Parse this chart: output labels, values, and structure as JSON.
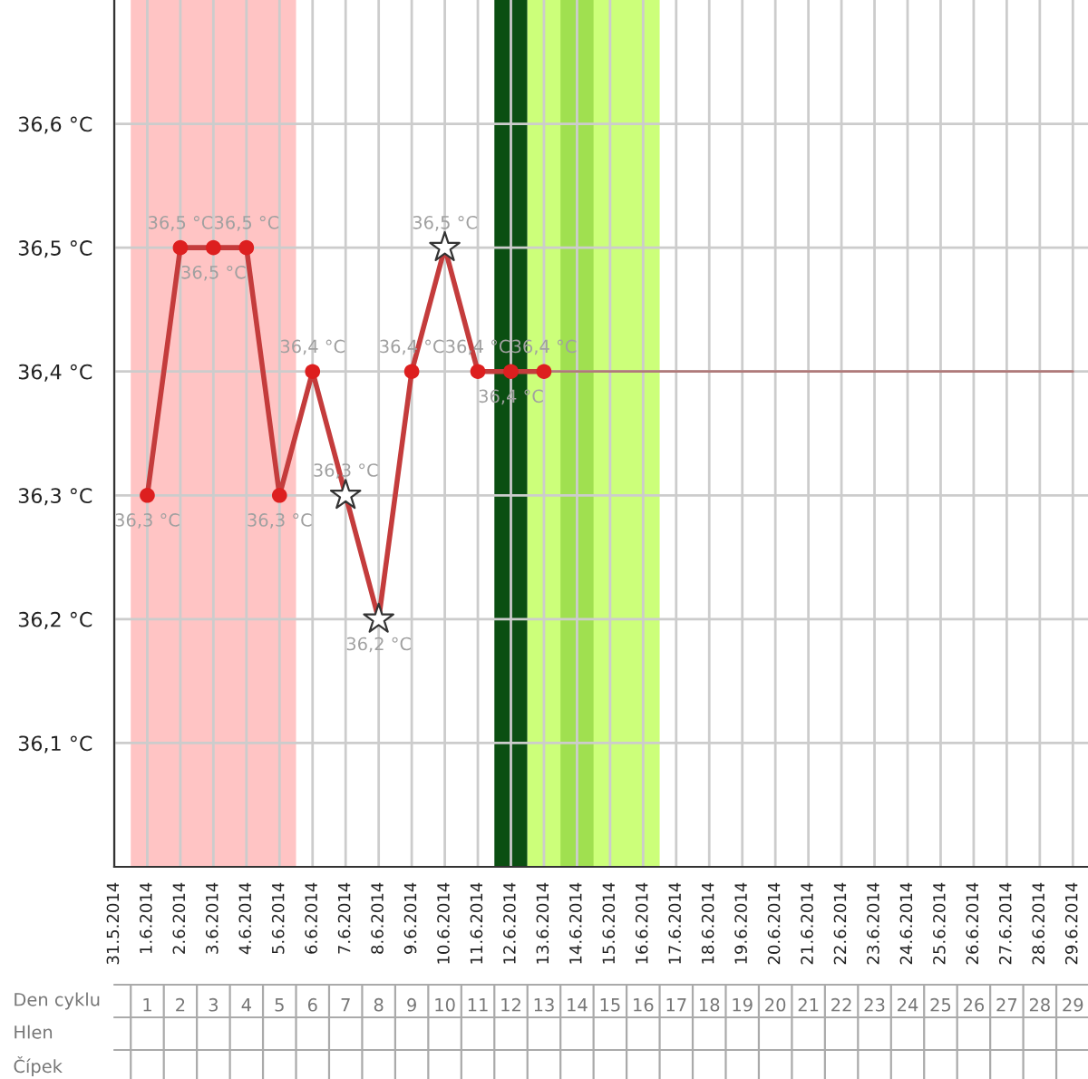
{
  "chart_data": {
    "type": "line",
    "xlim": [
      "2014-05-31",
      "2014-06-29T11:00"
    ],
    "xticks": [
      {
        "value": "2014-05-31",
        "label": "31.5.2014"
      },
      {
        "value": "2014-06-01",
        "label": "1.6.2014"
      },
      {
        "value": "2014-06-02",
        "label": "2.6.2014"
      },
      {
        "value": "2014-06-03",
        "label": "3.6.2014"
      },
      {
        "value": "2014-06-04",
        "label": "4.6.2014"
      },
      {
        "value": "2014-06-05",
        "label": "5.6.2014"
      },
      {
        "value": "2014-06-06",
        "label": "6.6.2014"
      },
      {
        "value": "2014-06-07",
        "label": "7.6.2014"
      },
      {
        "value": "2014-06-08",
        "label": "8.6.2014"
      },
      {
        "value": "2014-06-09",
        "label": "9.6.2014"
      },
      {
        "value": "2014-06-10",
        "label": "10.6.2014"
      },
      {
        "value": "2014-06-11",
        "label": "11.6.2014"
      },
      {
        "value": "2014-06-12",
        "label": "12.6.2014"
      },
      {
        "value": "2014-06-13",
        "label": "13.6.2014"
      },
      {
        "value": "2014-06-14",
        "label": "14.6.2014"
      },
      {
        "value": "2014-06-15",
        "label": "15.6.2014"
      },
      {
        "value": "2014-06-16",
        "label": "16.6.2014"
      },
      {
        "value": "2014-06-17",
        "label": "17.6.2014"
      },
      {
        "value": "2014-06-18",
        "label": "18.6.2014"
      },
      {
        "value": "2014-06-19",
        "label": "19.6.2014"
      },
      {
        "value": "2014-06-20",
        "label": "20.6.2014"
      },
      {
        "value": "2014-06-21",
        "label": "21.6.2014"
      },
      {
        "value": "2014-06-22",
        "label": "22.6.2014"
      },
      {
        "value": "2014-06-23",
        "label": "23.6.2014"
      },
      {
        "value": "2014-06-24",
        "label": "24.6.2014"
      },
      {
        "value": "2014-06-25",
        "label": "25.6.2014"
      },
      {
        "value": "2014-06-26",
        "label": "26.6.2014"
      },
      {
        "value": "2014-06-27",
        "label": "27.6.2014"
      },
      {
        "value": "2014-06-28",
        "label": "28.6.2014"
      },
      {
        "value": "2014-06-29",
        "label": "29.6.2014"
      }
    ],
    "ylim": [
      36.0,
      36.7
    ],
    "yticks": [
      {
        "value": 36.1,
        "label": "36,1 °C"
      },
      {
        "value": 36.2,
        "label": "36,2 °C"
      },
      {
        "value": 36.3,
        "label": "36,3 °C"
      },
      {
        "value": 36.4,
        "label": "36,4 °C"
      },
      {
        "value": 36.5,
        "label": "36,5 °C"
      },
      {
        "value": 36.6,
        "label": "36,6 °C"
      }
    ],
    "x2lim": [
      "2014-05-31",
      "2014-06-29T11:00"
    ],
    "x2label": "Den cyklu",
    "x2ticks": [
      {
        "value": "2014-06-01",
        "label": "1"
      },
      {
        "value": "2014-06-02",
        "label": "2"
      },
      {
        "value": "2014-06-03",
        "label": "3"
      },
      {
        "value": "2014-06-04",
        "label": "4"
      },
      {
        "value": "2014-06-05",
        "label": "5"
      },
      {
        "value": "2014-06-06",
        "label": "6"
      },
      {
        "value": "2014-06-07",
        "label": "7"
      },
      {
        "value": "2014-06-08",
        "label": "8"
      },
      {
        "value": "2014-06-09",
        "label": "9"
      },
      {
        "value": "2014-06-10",
        "label": "10"
      },
      {
        "value": "2014-06-11",
        "label": "11"
      },
      {
        "value": "2014-06-12",
        "label": "12"
      },
      {
        "value": "2014-06-13",
        "label": "13"
      },
      {
        "value": "2014-06-14",
        "label": "14"
      },
      {
        "value": "2014-06-15",
        "label": "15"
      },
      {
        "value": "2014-06-16",
        "label": "16"
      },
      {
        "value": "2014-06-17",
        "label": "17"
      },
      {
        "value": "2014-06-18",
        "label": "18"
      },
      {
        "value": "2014-06-19",
        "label": "19"
      },
      {
        "value": "2014-06-20",
        "label": "20"
      },
      {
        "value": "2014-06-21",
        "label": "21"
      },
      {
        "value": "2014-06-22",
        "label": "22"
      },
      {
        "value": "2014-06-23",
        "label": "23"
      },
      {
        "value": "2014-06-24",
        "label": "24"
      },
      {
        "value": "2014-06-25",
        "label": "25"
      },
      {
        "value": "2014-06-26",
        "label": "26"
      },
      {
        "value": "2014-06-27",
        "label": "27"
      },
      {
        "value": "2014-06-28",
        "label": "28"
      },
      {
        "value": "2014-06-29",
        "label": "29"
      }
    ],
    "annotations": [
      "Hlen",
      "Čípek"
    ],
    "grid": true,
    "legend": false,
    "bands": [
      {
        "axis": "x",
        "from": "2014-05-31T12:00",
        "to": "2014-06-05T12:00",
        "color": "#ffc4c4"
      },
      {
        "axis": "x",
        "from": "2014-06-11T12:00",
        "to": "2014-06-12T12:00",
        "color": "#0b4f12"
      },
      {
        "axis": "x",
        "from": "2014-06-12T12:00",
        "to": "2014-06-16T12:00",
        "color": "#ccff7a"
      },
      {
        "axis": "x",
        "from": "2014-06-13T12:00",
        "to": "2014-06-14T12:00",
        "color": "#a0e050"
      }
    ],
    "series": [
      {
        "marker": "none",
        "line_style": "solid",
        "color": "#c43c3c",
        "x": [
          "2014-06-01",
          "2014-06-02",
          "2014-06-03",
          "2014-06-04",
          "2014-06-05",
          "2014-06-06",
          "2014-06-07",
          "2014-06-08",
          "2014-06-09",
          "2014-06-10",
          "2014-06-11",
          "2014-06-12",
          "2014-06-13"
        ],
        "values": [
          36.3,
          36.5,
          36.5,
          36.5,
          36.3,
          36.4,
          36.3,
          36.2,
          36.4,
          36.5,
          36.4,
          36.4,
          36.4
        ]
      },
      {
        "marker": "none",
        "line_style": "solid",
        "color": "#b07a7a",
        "x": [
          "2014-06-13",
          "2014-06-29"
        ],
        "values": [
          36.4,
          36.4
        ]
      },
      {
        "type": "scatter",
        "marker": "circle",
        "color": "#dd1f1f",
        "x": [
          "2014-06-01",
          "2014-06-02",
          "2014-06-03",
          "2014-06-04",
          "2014-06-05",
          "2014-06-06",
          "2014-06-09",
          "2014-06-11",
          "2014-06-12",
          "2014-06-13"
        ],
        "values": [
          36.3,
          36.5,
          36.5,
          36.5,
          36.3,
          36.4,
          36.4,
          36.4,
          36.4,
          36.4
        ],
        "value_labels": [
          "36,3 °C",
          "36,5 °C",
          "36,5 °C",
          "36,5 °C",
          "36,3 °C",
          "36,4 °C",
          "36,4 °C",
          "36,4 °C",
          "36,4 °C",
          "36,4 °C"
        ]
      },
      {
        "type": "scatter",
        "marker": "star",
        "color": "#ffffff",
        "x": [
          "2014-06-07",
          "2014-06-08",
          "2014-06-10"
        ],
        "values": [
          36.3,
          36.2,
          36.5
        ],
        "value_labels": [
          "36,3 °C",
          "36,2 °C",
          "36,5 °C"
        ]
      }
    ]
  }
}
